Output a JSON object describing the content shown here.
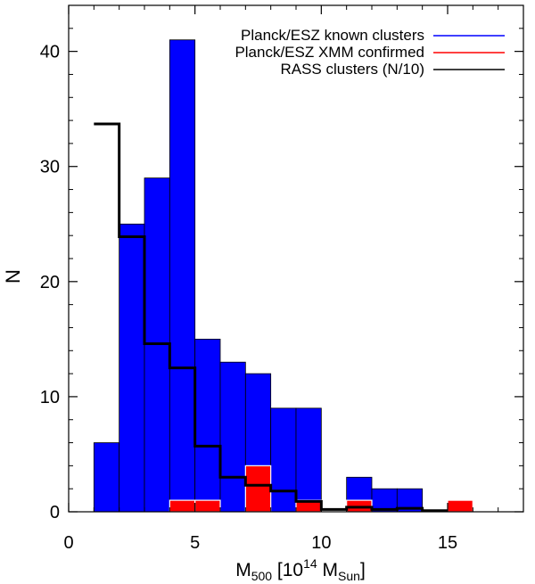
{
  "chart_data": {
    "type": "bar",
    "title": "",
    "xlabel": {
      "main": "M",
      "sub1": "500",
      "open": " [10",
      "sup": "14",
      "mid": " M",
      "sub2": "Sun",
      "close": "]"
    },
    "ylabel": "N",
    "xlim": [
      0,
      18
    ],
    "ylim": [
      0,
      44
    ],
    "xticks": [
      0,
      5,
      10,
      15
    ],
    "yticks": [
      0,
      10,
      20,
      30,
      40
    ],
    "bin_width": 1,
    "legend_position": "top-right",
    "series": [
      {
        "name": "Planck/ESZ known clusters",
        "style": "filled-bars",
        "color": "#0000ff",
        "x_start": [
          1,
          2,
          3,
          4,
          5,
          6,
          7,
          8,
          9,
          11,
          12,
          13
        ],
        "values": [
          6,
          25,
          29,
          41,
          15,
          13,
          12,
          9,
          9,
          3,
          2,
          2
        ]
      },
      {
        "name": "Planck/ESZ XMM confirmed",
        "style": "filled-bars",
        "color": "#ff0000",
        "x_start": [
          4,
          5,
          7,
          9,
          11,
          15
        ],
        "values": [
          1,
          1,
          4,
          1,
          1,
          1
        ]
      },
      {
        "name": "RASS clusters (N/10)",
        "style": "step",
        "color": "#000000",
        "x_start": [
          1,
          2,
          3,
          4,
          5,
          6,
          7,
          8,
          9,
          10,
          11,
          12,
          13,
          14
        ],
        "values": [
          33.7,
          23.9,
          14.6,
          12.5,
          5.7,
          3.0,
          2.3,
          1.8,
          0.9,
          0.2,
          0.4,
          0.2,
          0.3,
          0.1
        ]
      }
    ]
  }
}
